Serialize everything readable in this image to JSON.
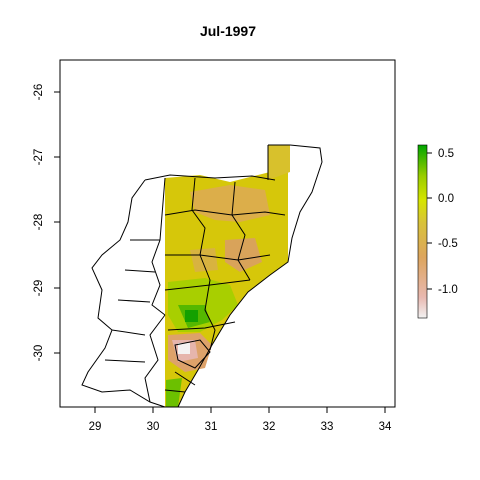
{
  "chart_data": {
    "type": "heatmap",
    "title": "Jul-1997",
    "xlabel": "",
    "ylabel": "",
    "xlim": [
      28.4,
      34.2
    ],
    "ylim": [
      -30.8,
      -25.5
    ],
    "x_ticks": [
      "29",
      "30",
      "31",
      "32",
      "33",
      "34"
    ],
    "y_ticks": [
      "-26",
      "-27",
      "-28",
      "-29",
      "-30"
    ],
    "legend": {
      "placement": "right",
      "range": [
        -1.35,
        0.6
      ],
      "ticks": [
        "0.5",
        "0.0",
        "-0.5",
        "-1.0"
      ],
      "colors": [
        "#f2f2f2",
        "#e8b8b0",
        "#dda55e",
        "#d8c23a",
        "#d6e500",
        "#9acd00",
        "#20a300",
        "#00a600"
      ]
    },
    "map_color_notes": "raster values mostly between -0.4 and -0.8; greener patch near 30.5E,-29.5S; pinkish patch near 30.4E,-30.0S"
  }
}
